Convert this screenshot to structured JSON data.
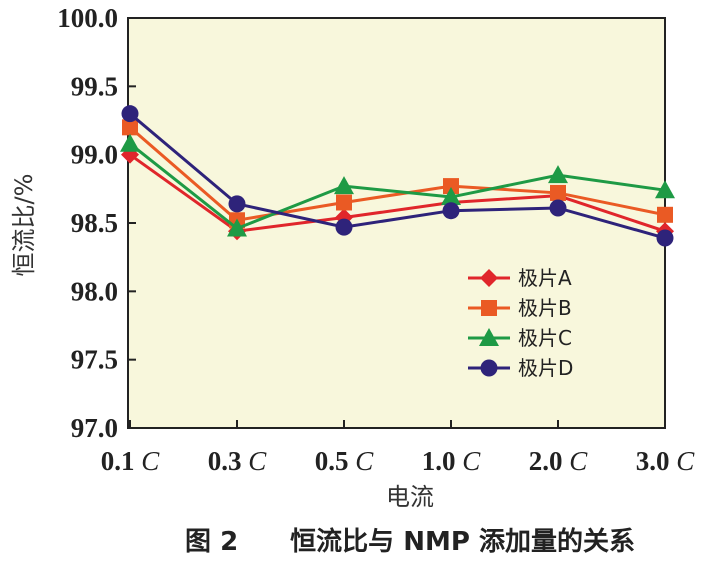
{
  "chart_data": {
    "type": "line",
    "title": "",
    "caption": "图 2　　恒流比与 NMP 添加量的关系",
    "xlabel": "电流",
    "ylabel": "恒流比/%",
    "categories": [
      "0.1 C",
      "0.3 C",
      "0.5 C",
      "1.0 C",
      "2.0 C",
      "3.0 C"
    ],
    "ylim": [
      97.0,
      100.0
    ],
    "yticks": [
      "97.0",
      "97.5",
      "98.0",
      "98.5",
      "99.0",
      "99.5",
      "100.0"
    ],
    "legend_position": "right-middle",
    "series": [
      {
        "name": "极片A",
        "color": "#e0262b",
        "marker": "diamond",
        "values": [
          99.0,
          98.44,
          98.54,
          98.65,
          98.7,
          98.44
        ]
      },
      {
        "name": "极片B",
        "color": "#ea5a24",
        "marker": "square",
        "values": [
          99.2,
          98.52,
          98.65,
          98.77,
          98.72,
          98.56
        ]
      },
      {
        "name": "极片C",
        "color": "#1e9a45",
        "marker": "triangle",
        "values": [
          99.08,
          98.46,
          98.77,
          98.69,
          98.85,
          98.74
        ]
      },
      {
        "name": "极片D",
        "color": "#2e237a",
        "marker": "circle",
        "values": [
          99.3,
          98.64,
          98.47,
          98.59,
          98.61,
          98.39
        ]
      }
    ]
  }
}
